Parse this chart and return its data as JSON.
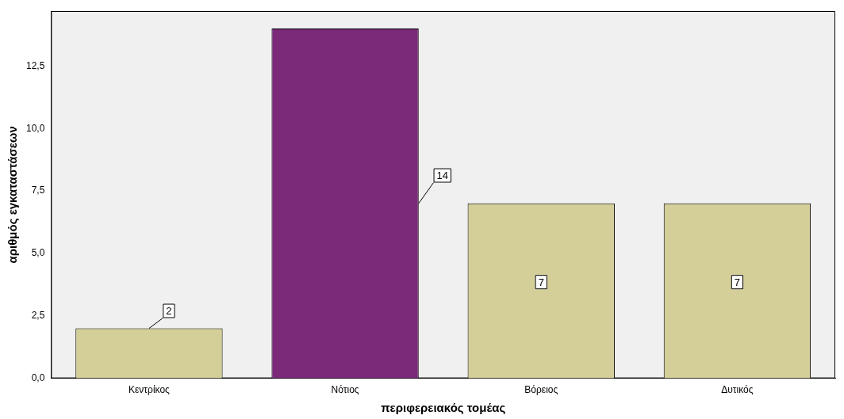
{
  "chart_data": {
    "type": "bar",
    "xlabel": "περιφερειακός τομέας",
    "ylabel": "αριθμός εγκαταστάσεων",
    "categories": [
      "Κεντρίκος",
      "Νότιος",
      "Βόρειος",
      "Δυτικός"
    ],
    "values": [
      2,
      14,
      7,
      7
    ],
    "colors": [
      "#d4cf98",
      "#7a2a79",
      "#d4cf98",
      "#d4cf98"
    ],
    "ylim": [
      0,
      14.7
    ],
    "yticks": [
      {
        "value": 0,
        "label": "0,0"
      },
      {
        "value": 2.5,
        "label": "2,5"
      },
      {
        "value": 5,
        "label": "5,0"
      },
      {
        "value": 7.5,
        "label": "7,5"
      },
      {
        "value": 10,
        "label": "10,0"
      },
      {
        "value": 12.5,
        "label": "12,5"
      }
    ],
    "grid": false,
    "legend": false,
    "data_labels": true
  }
}
